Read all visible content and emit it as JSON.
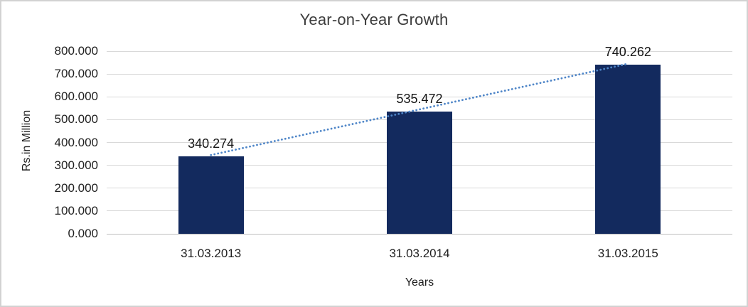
{
  "chart_data": {
    "type": "bar",
    "title": "Year-on-Year Growth",
    "xlabel": "Years",
    "ylabel": "Rs.in Million",
    "categories": [
      "31.03.2013",
      "31.03.2014",
      "31.03.2015"
    ],
    "values": [
      340.274,
      535.472,
      740.262
    ],
    "value_labels": [
      "340.274",
      "535.472",
      "740.262"
    ],
    "ylim": [
      0,
      800
    ],
    "y_ticks": [
      {
        "value": 0,
        "label": "0.000"
      },
      {
        "value": 100,
        "label": "100.000"
      },
      {
        "value": 200,
        "label": "200.000"
      },
      {
        "value": 300,
        "label": "300.000"
      },
      {
        "value": 400,
        "label": "400.000"
      },
      {
        "value": 500,
        "label": "500.000"
      },
      {
        "value": 600,
        "label": "600.000"
      },
      {
        "value": 700,
        "label": "700.000"
      },
      {
        "value": 800,
        "label": "800.000"
      }
    ],
    "grid": "horizontal",
    "legend": "none",
    "trendline": {
      "type": "linear",
      "style": "dotted",
      "start_value": 340.274,
      "end_value": 740.262
    },
    "colors": {
      "bar": "#132a5e",
      "trendline": "#4f86c8",
      "gridline": "#d9d9d9",
      "axis_line": "#bfbfbf",
      "text": "#1f1f1f",
      "border": "#d2d2d2",
      "background": "#ffffff"
    }
  }
}
